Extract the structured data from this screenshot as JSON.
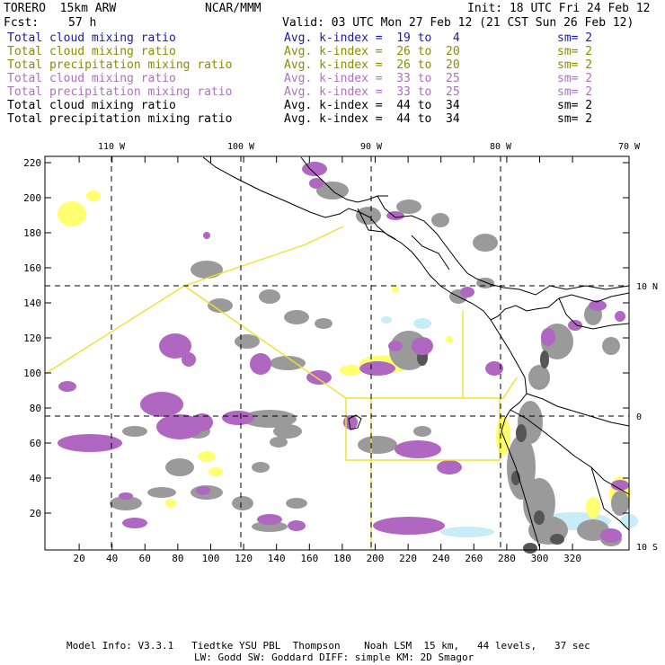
{
  "header": {
    "model": "TORERO  15km ARW",
    "org": "NCAR/MMM",
    "init": "Init: 18 UTC Fri 24 Feb 12",
    "fcst_label": "Fcst:",
    "fcst_value": "57 h",
    "valid": "Valid: 03 UTC Mon 27 Feb 12 (21 CST Sun 26 Feb 12)"
  },
  "legend": [
    {
      "field": "Total cloud mixing ratio",
      "kindex": "Avg. k-index =  19 to   4",
      "sm": "sm= 2",
      "color": "#1a1aa8"
    },
    {
      "field": "Total cloud mixing ratio",
      "kindex": "Avg. k-index =  26 to  20",
      "sm": "sm= 2",
      "color": "#8c8c00"
    },
    {
      "field": "Total precipitation mixing ratio",
      "kindex": "Avg. k-index =  26 to  20",
      "sm": "sm= 2",
      "color": "#8c8c00"
    },
    {
      "field": "Total cloud mixing ratio",
      "kindex": "Avg. k-index =  33 to  25",
      "sm": "sm= 2",
      "color": "#b070c0"
    },
    {
      "field": "Total precipitation mixing ratio",
      "kindex": "Avg. k-index =  33 to  25",
      "sm": "sm= 2",
      "color": "#b070c0"
    },
    {
      "field": "Total cloud mixing ratio",
      "kindex": "Avg. k-index =  44 to  34",
      "sm": "sm= 2",
      "color": "#000000"
    },
    {
      "field": "Total precipitation mixing ratio",
      "kindex": "Avg. k-index =  44 to  34",
      "sm": "sm= 2",
      "color": "#000000"
    }
  ],
  "map": {
    "lon_labels": [
      "110 W",
      "100 W",
      "90 W",
      "80 W",
      "70 W"
    ],
    "lat_labels": [
      "10 N",
      "0",
      "10 S"
    ],
    "x_ticks": [
      "20",
      "40",
      "60",
      "80",
      "100",
      "120",
      "140",
      "160",
      "180",
      "200",
      "220",
      "240",
      "260",
      "280",
      "300",
      "320"
    ],
    "y_ticks": [
      "20",
      "40",
      "60",
      "80",
      "100",
      "120",
      "140",
      "160",
      "180",
      "200",
      "220"
    ],
    "colors": {
      "gray": "#9a9a9a",
      "gray_dark": "#555555",
      "purple": "#b067c2",
      "yellow": "#ffff70",
      "yellow_line": "#f0e030",
      "cyan": "#c8ecf8",
      "coast": "#000000"
    }
  },
  "footer": {
    "line1": "Model Info: V3.3.1   Tiedtke YSU PBL  Thompson    Noah LSM  15 km,   44 levels,   37 sec",
    "line2": "LW: Godd SW: Goddard DIFF: simple KM: 2D Smagor"
  }
}
